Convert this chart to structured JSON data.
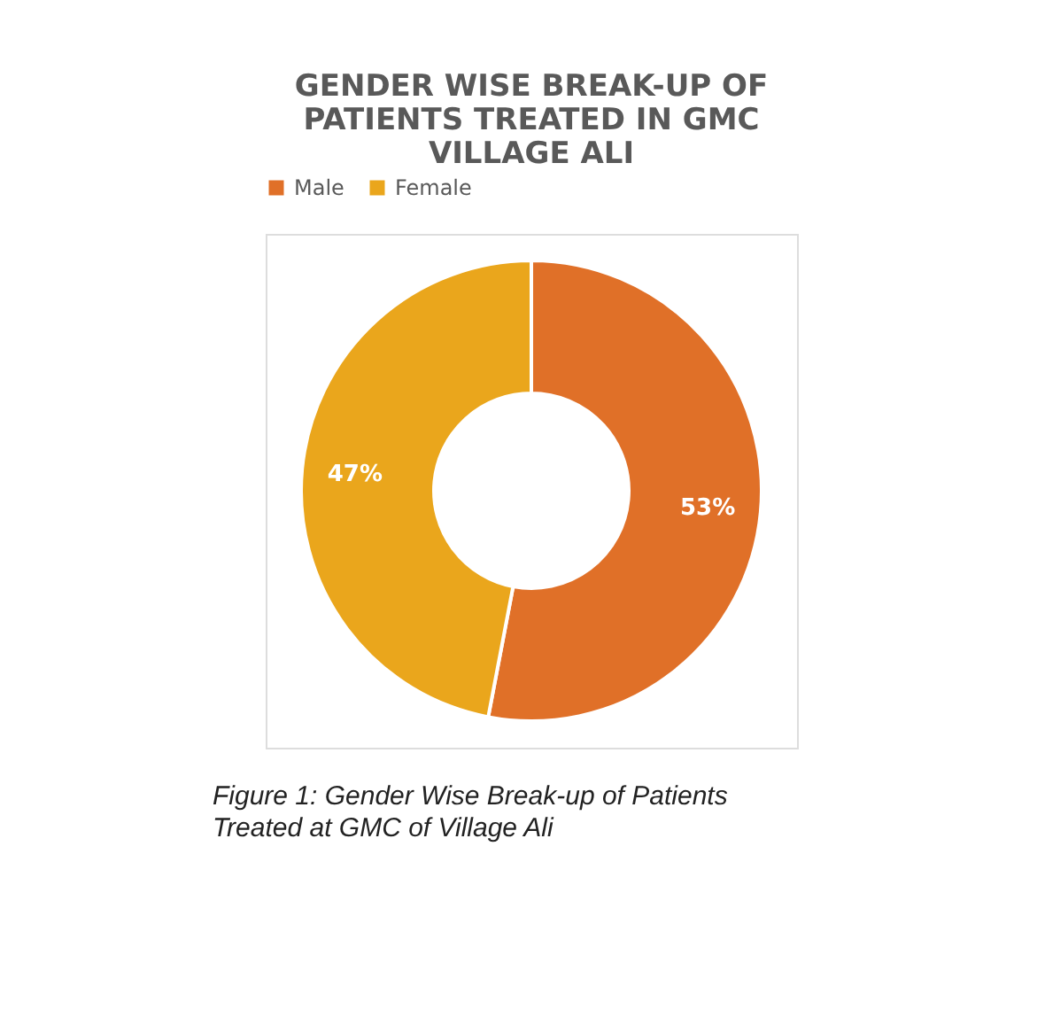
{
  "chart_data": {
    "type": "donut",
    "title": [
      "GENDER WISE BREAK-UP OF",
      "PATIENTS TREATED IN GMC",
      "VILLAGE ALI"
    ],
    "categories": [
      "Male",
      "Female"
    ],
    "values": [
      53,
      47
    ],
    "colors": [
      "#e07028",
      "#eaa61c"
    ],
    "value_labels": [
      "53%",
      "47%"
    ],
    "legend": "top",
    "annotations": [
      "Figure 1: Gender Wise Break-up of Patients",
      "Treated at GMC of Village Ali"
    ]
  }
}
